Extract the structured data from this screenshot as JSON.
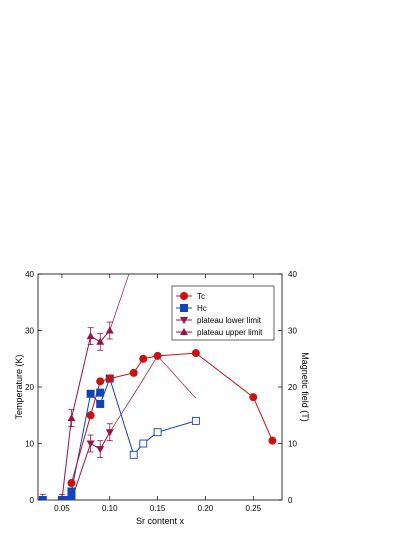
{
  "chart_data": {
    "type": "line",
    "xlabel": "Sr content x",
    "ylabel_left": "Temperature (K)",
    "ylabel_right": "Magnetic field (T)",
    "xlim": [
      0.025,
      0.28
    ],
    "ylim": [
      0,
      40
    ],
    "ylim_right": [
      0,
      40
    ],
    "x_ticks": [
      0.05,
      0.1,
      0.15,
      0.2,
      0.25
    ],
    "x_tick_labels": [
      "0.05",
      "0.10",
      "0.15",
      "0.20",
      "0.25"
    ],
    "y_ticks": [
      0,
      10,
      20,
      30,
      40
    ],
    "y_tick_labels": [
      "0",
      "10",
      "20",
      "30",
      "40"
    ],
    "legend_position": "top-right",
    "colors": {
      "red": "#cc1111",
      "blue": "#1144bb",
      "maroon": "#99124a"
    },
    "series": [
      {
        "name": "Tc",
        "color": "#cc1111",
        "marker": "circle",
        "x": [
          0.06,
          0.08,
          0.09,
          0.1,
          0.125,
          0.135,
          0.15,
          0.19,
          0.25,
          0.27
        ],
        "y": [
          3,
          15,
          21,
          21.5,
          22.5,
          25,
          25.5,
          26,
          18.2,
          10.5
        ]
      },
      {
        "name": "Hc",
        "color": "#1144bb",
        "marker": "square",
        "filled_x": [
          0.03,
          0.05,
          0.055,
          0.06,
          0.06,
          0.08,
          0.09,
          0.09,
          0.1
        ],
        "filled_y": [
          0,
          0,
          0,
          0.5,
          1.5,
          18.8,
          17,
          19,
          21.5
        ],
        "open_x": [
          0.125,
          0.135,
          0.15,
          0.19
        ],
        "open_y": [
          8,
          10,
          12,
          14
        ],
        "line_x": [
          0.03,
          0.05,
          0.055,
          0.06,
          0.06,
          0.08,
          0.09,
          0.1,
          0.125,
          0.135,
          0.15,
          0.19
        ],
        "line_y": [
          0,
          0,
          0,
          0.5,
          1.5,
          18.8,
          17,
          21.5,
          8,
          10,
          12,
          14
        ]
      },
      {
        "name": "plateau lower limit",
        "color": "#99124a",
        "marker": "triangle-down",
        "x": [
          0.03,
          0.05,
          0.06,
          0.08,
          0.09,
          0.1
        ],
        "y": [
          0,
          0,
          0,
          10,
          9,
          12
        ],
        "yerr": [
          0,
          0,
          0,
          1.5,
          1.5,
          1.5
        ],
        "thin_line_x": [
          0.1,
          0.13,
          0.15,
          0.19
        ],
        "thin_line_y": [
          12,
          20,
          25.5,
          18
        ]
      },
      {
        "name": "plateau upper limit",
        "color": "#99124a",
        "marker": "triangle-up",
        "x": [
          0.03,
          0.05,
          0.06,
          0.08,
          0.09,
          0.1
        ],
        "y": [
          0,
          0,
          14.5,
          29,
          28,
          30
        ],
        "yerr": [
          1,
          1,
          1.5,
          1.5,
          1.5,
          1.5
        ],
        "thin_line_x": [
          0.1,
          0.12
        ],
        "thin_line_y": [
          30,
          40
        ]
      }
    ]
  }
}
